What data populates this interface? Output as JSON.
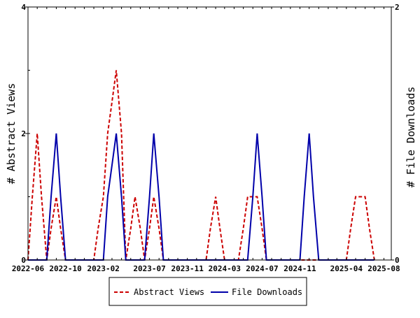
{
  "chart_data": {
    "type": "line",
    "grid": false,
    "legend_position": "bottom",
    "x_tick_labels": [
      "2022-06",
      "2022-10",
      "2023-02",
      "2023-07",
      "2023-11",
      "2024-03",
      "2024-07",
      "2024-11",
      "2025-04",
      "2025-08"
    ],
    "left_axis": {
      "label": "# Abstract Views",
      "ylim": [
        0,
        4
      ],
      "ticks": [
        0,
        2,
        4
      ]
    },
    "right_axis": {
      "label": "# File Downloads",
      "ylim": [
        0,
        2
      ],
      "ticks": [
        0,
        2
      ]
    },
    "series": [
      {
        "name": "Abstract Views",
        "axis": "left",
        "color": "#cc0000",
        "dash": "dashed",
        "points": [
          [
            "2022-06-01",
            0
          ],
          [
            "2022-06-15",
            1
          ],
          [
            "2022-07-01",
            2
          ],
          [
            "2022-07-15",
            1
          ],
          [
            "2022-08-01",
            0
          ],
          [
            "2022-08-15",
            0.5
          ],
          [
            "2022-09-01",
            1
          ],
          [
            "2022-09-15",
            0.5
          ],
          [
            "2022-10-01",
            0
          ],
          [
            "2022-10-15",
            0
          ],
          [
            "2022-11-01",
            0
          ],
          [
            "2022-11-15",
            0
          ],
          [
            "2022-12-01",
            0
          ],
          [
            "2022-12-15",
            0
          ],
          [
            "2023-01-01",
            0
          ],
          [
            "2023-01-15",
            0.5
          ],
          [
            "2023-02-01",
            1
          ],
          [
            "2023-02-15",
            2
          ],
          [
            "2023-03-01",
            2.5
          ],
          [
            "2023-03-15",
            3
          ],
          [
            "2023-04-01",
            2
          ],
          [
            "2023-04-15",
            0
          ],
          [
            "2023-05-01",
            0.5
          ],
          [
            "2023-05-15",
            1
          ],
          [
            "2023-06-01",
            0.5
          ],
          [
            "2023-06-15",
            0
          ],
          [
            "2023-07-01",
            0.5
          ],
          [
            "2023-07-15",
            1
          ],
          [
            "2023-08-01",
            0.5
          ],
          [
            "2023-08-15",
            0
          ],
          [
            "2023-09-01",
            0
          ],
          [
            "2023-09-15",
            0
          ],
          [
            "2023-10-01",
            0
          ],
          [
            "2023-10-15",
            0
          ],
          [
            "2023-11-01",
            0
          ],
          [
            "2023-11-15",
            0
          ],
          [
            "2023-12-01",
            0
          ],
          [
            "2023-12-15",
            0
          ],
          [
            "2024-01-01",
            0
          ],
          [
            "2024-01-15",
            0.5
          ],
          [
            "2024-02-01",
            1
          ],
          [
            "2024-02-15",
            0.5
          ],
          [
            "2024-03-01",
            0
          ],
          [
            "2024-03-15",
            0
          ],
          [
            "2024-04-01",
            0
          ],
          [
            "2024-04-15",
            0
          ],
          [
            "2024-05-01",
            0.5
          ],
          [
            "2024-05-15",
            1
          ],
          [
            "2024-06-01",
            1
          ],
          [
            "2024-06-15",
            1
          ],
          [
            "2024-07-01",
            0.5
          ],
          [
            "2024-07-15",
            0
          ],
          [
            "2024-08-01",
            0
          ],
          [
            "2024-09-01",
            0
          ],
          [
            "2024-10-01",
            0
          ],
          [
            "2024-11-01",
            0
          ],
          [
            "2024-12-01",
            0
          ],
          [
            "2025-01-01",
            0
          ],
          [
            "2025-02-01",
            0
          ],
          [
            "2025-03-01",
            0
          ],
          [
            "2025-04-01",
            0
          ],
          [
            "2025-04-15",
            0.5
          ],
          [
            "2025-05-01",
            1
          ],
          [
            "2025-05-15",
            1
          ],
          [
            "2025-06-01",
            1
          ],
          [
            "2025-06-15",
            0.5
          ],
          [
            "2025-07-01",
            0
          ]
        ]
      },
      {
        "name": "File Downloads",
        "axis": "right",
        "color": "#0000aa",
        "dash": "solid",
        "points": [
          [
            "2022-06-01",
            0
          ],
          [
            "2022-06-15",
            0
          ],
          [
            "2022-07-01",
            0
          ],
          [
            "2022-07-15",
            0
          ],
          [
            "2022-08-01",
            0
          ],
          [
            "2022-08-15",
            0.5
          ],
          [
            "2022-09-01",
            1
          ],
          [
            "2022-09-15",
            0.5
          ],
          [
            "2022-10-01",
            0
          ],
          [
            "2022-11-01",
            0
          ],
          [
            "2022-12-01",
            0
          ],
          [
            "2023-01-01",
            0
          ],
          [
            "2023-01-15",
            0
          ],
          [
            "2023-02-01",
            0
          ],
          [
            "2023-02-15",
            0.5
          ],
          [
            "2023-03-01",
            0.75
          ],
          [
            "2023-03-15",
            1
          ],
          [
            "2023-04-01",
            0.5
          ],
          [
            "2023-04-15",
            0
          ],
          [
            "2023-05-01",
            0
          ],
          [
            "2023-05-15",
            0
          ],
          [
            "2023-06-01",
            0
          ],
          [
            "2023-06-15",
            0
          ],
          [
            "2023-07-01",
            0.5
          ],
          [
            "2023-07-15",
            1
          ],
          [
            "2023-08-01",
            0.5
          ],
          [
            "2023-08-15",
            0
          ],
          [
            "2023-09-01",
            0
          ],
          [
            "2023-10-01",
            0
          ],
          [
            "2023-11-01",
            0
          ],
          [
            "2023-12-01",
            0
          ],
          [
            "2024-01-01",
            0
          ],
          [
            "2024-02-01",
            0
          ],
          [
            "2024-03-01",
            0
          ],
          [
            "2024-04-01",
            0
          ],
          [
            "2024-05-01",
            0
          ],
          [
            "2024-05-15",
            0
          ],
          [
            "2024-06-01",
            0.5
          ],
          [
            "2024-06-15",
            1
          ],
          [
            "2024-07-01",
            0.5
          ],
          [
            "2024-07-15",
            0
          ],
          [
            "2024-08-01",
            0
          ],
          [
            "2024-09-01",
            0
          ],
          [
            "2024-10-01",
            0
          ],
          [
            "2024-11-01",
            0
          ],
          [
            "2024-11-15",
            0.5
          ],
          [
            "2024-12-01",
            1
          ],
          [
            "2024-12-15",
            0.5
          ],
          [
            "2025-01-01",
            0
          ],
          [
            "2025-02-01",
            0
          ],
          [
            "2025-03-01",
            0
          ],
          [
            "2025-04-01",
            0
          ],
          [
            "2025-05-01",
            0
          ],
          [
            "2025-06-01",
            0
          ],
          [
            "2025-07-01",
            0
          ]
        ]
      }
    ]
  }
}
